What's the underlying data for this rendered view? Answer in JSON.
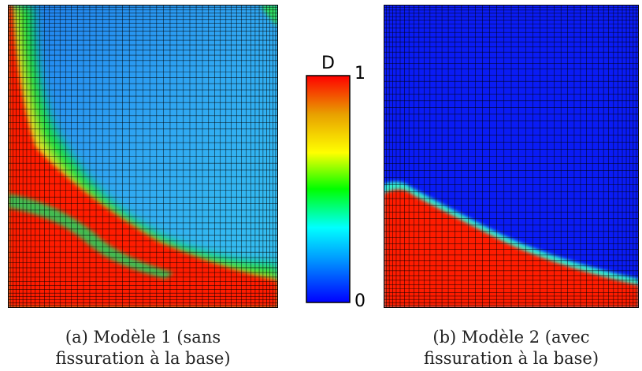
{
  "colorbar": {
    "title": "D",
    "max_label": "1",
    "min_label": "0",
    "colors": [
      "#0000ff",
      "#00b4ff",
      "#00ffff",
      "#00ff00",
      "#ffff00",
      "#ffa500",
      "#ff0000"
    ]
  },
  "panels": [
    {
      "id": "a",
      "caption_line1": "(a) Modèle 1 (sans",
      "caption_line2": "fissuration à la base)"
    },
    {
      "id": "b",
      "caption_line1": "(b) Modèle 2 (avec",
      "caption_line2": "fissuration à la base)"
    }
  ],
  "colors": {
    "damaged": "#ff1a00",
    "intact_a": "#2e9bf0",
    "intact_b": "#0a1cf5",
    "mesh": "#000000"
  }
}
